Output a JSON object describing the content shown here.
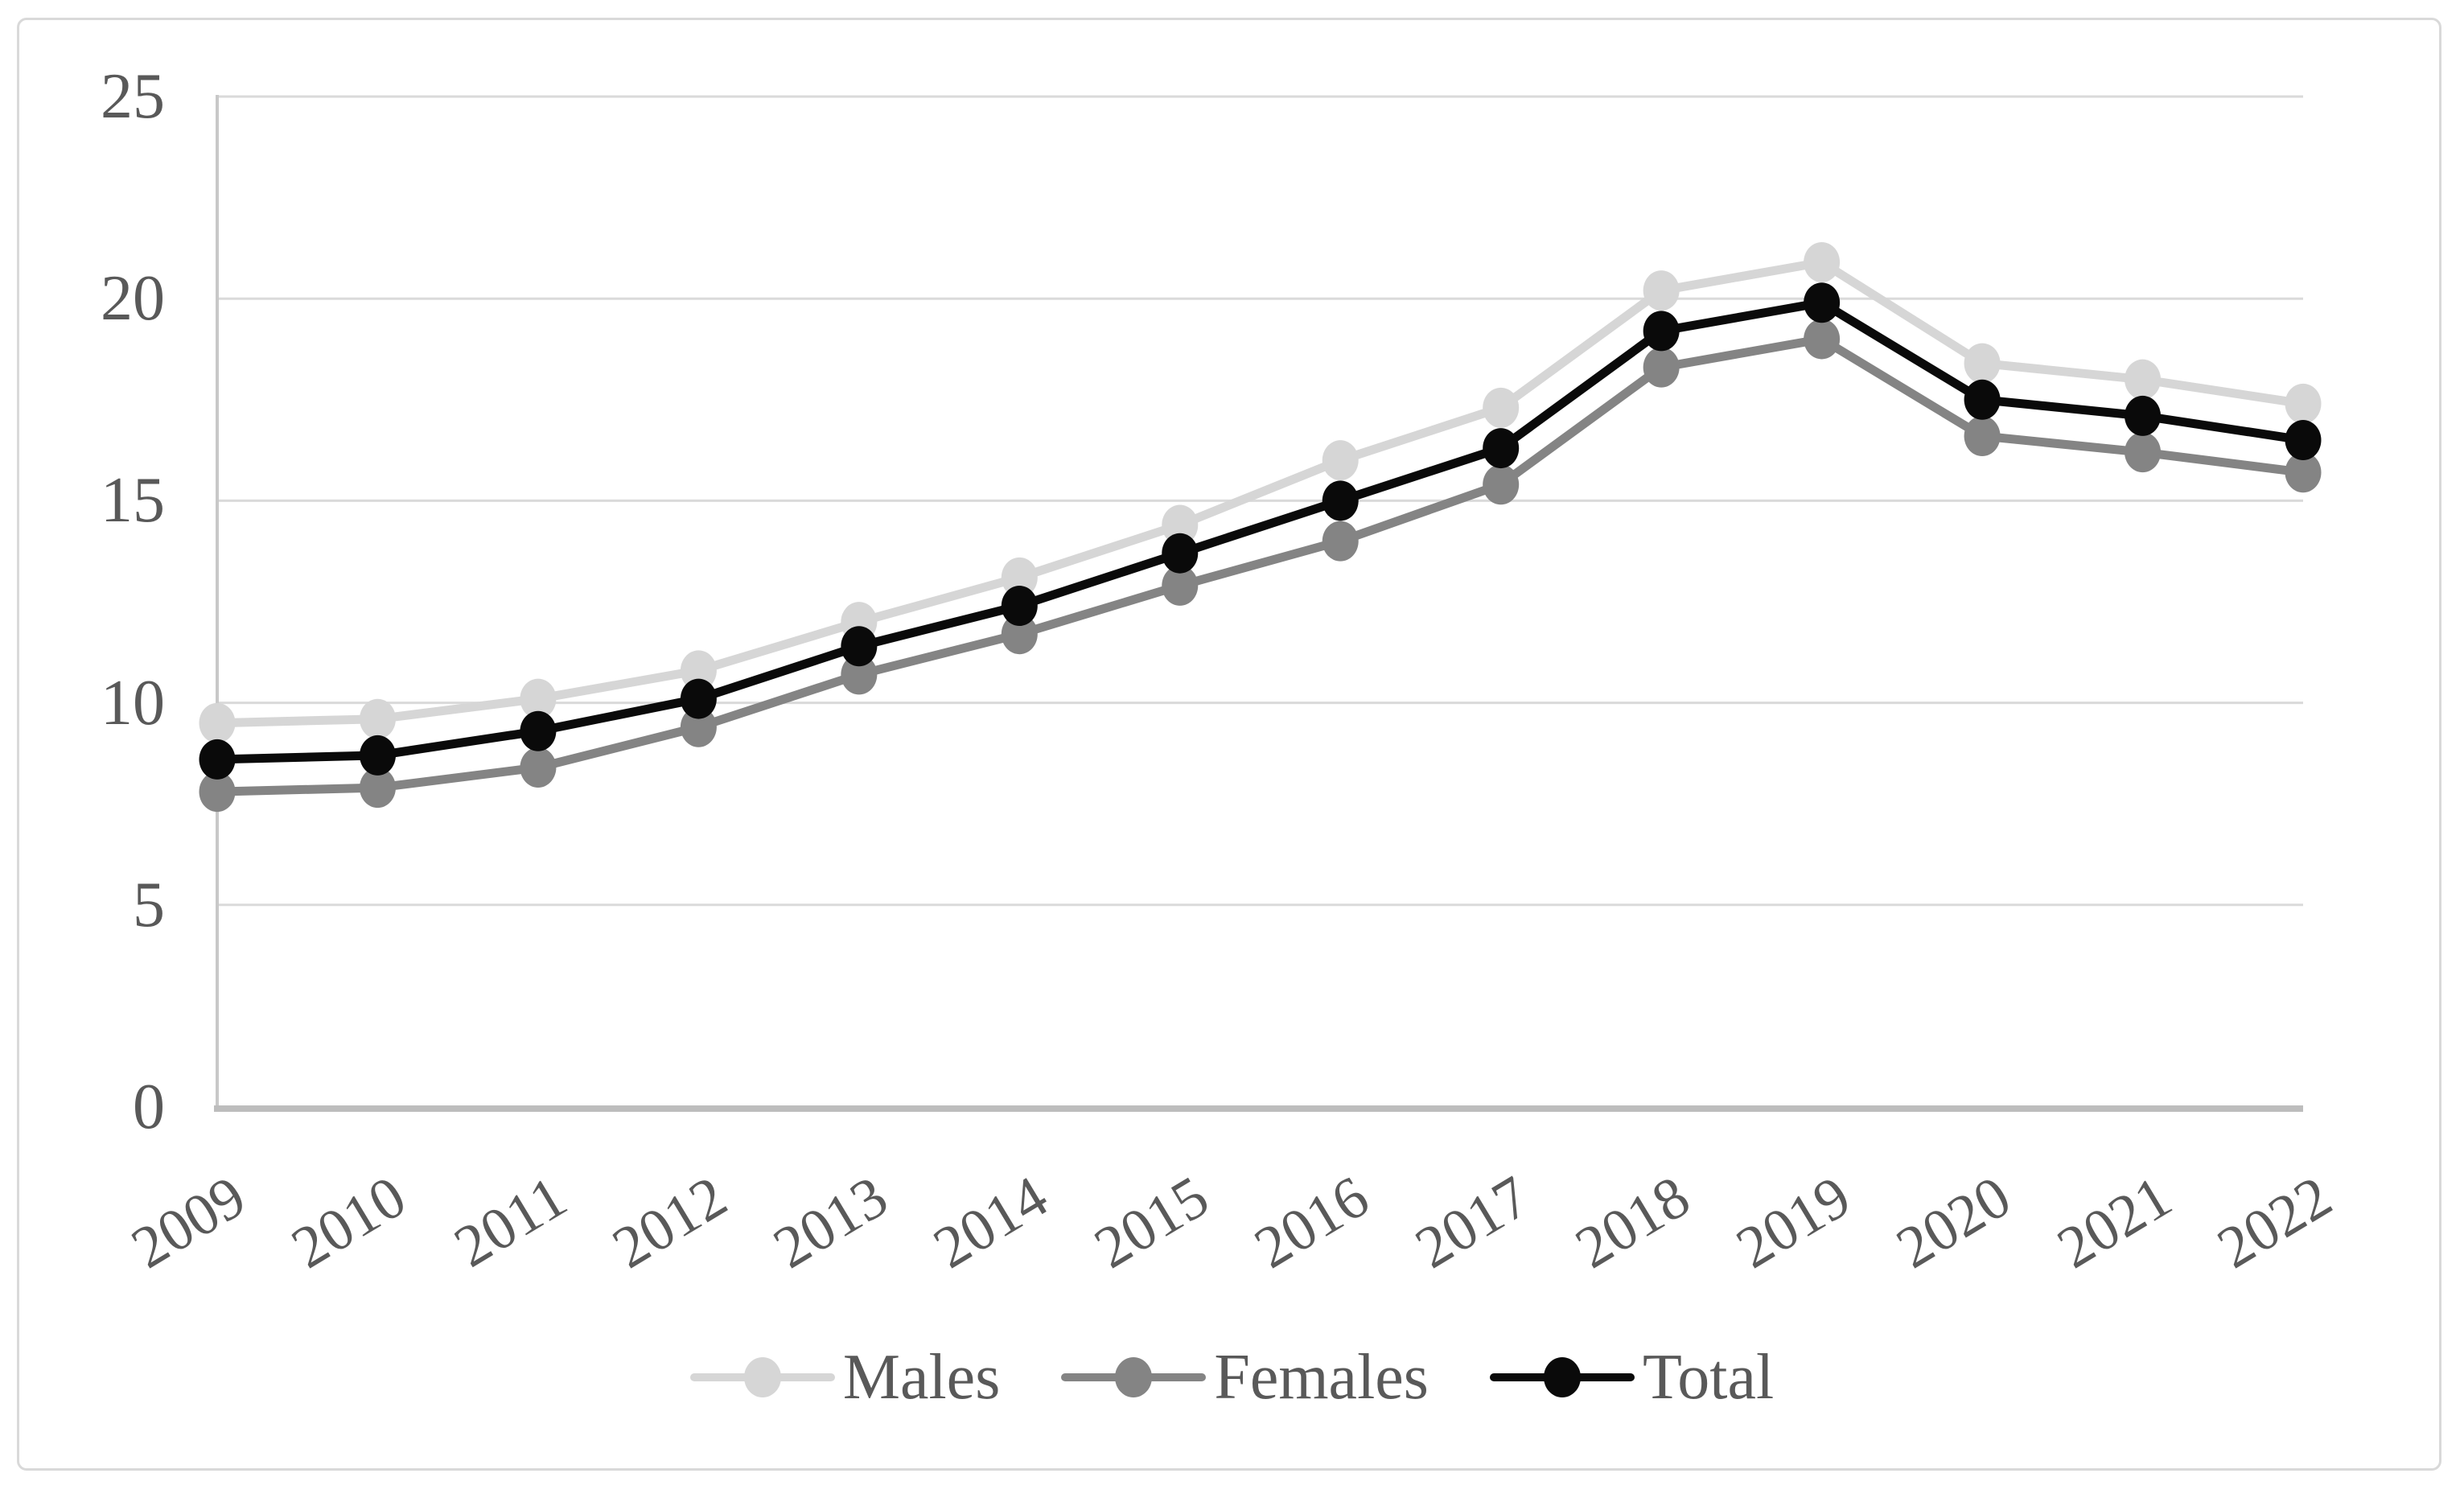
{
  "chart_data": {
    "type": "line",
    "title": "",
    "xlabel": "",
    "ylabel": "",
    "categories": [
      "2009",
      "2010",
      "2011",
      "2012",
      "2013",
      "2014",
      "2015",
      "2016",
      "2017",
      "2018",
      "2019",
      "2020",
      "2021",
      "2022"
    ],
    "series": [
      {
        "name": "Males",
        "color": "#d6d6d6",
        "values": [
          9.5,
          9.6,
          10.1,
          10.8,
          12.0,
          13.1,
          14.4,
          16.0,
          17.3,
          20.2,
          20.9,
          18.4,
          18.0,
          17.4
        ]
      },
      {
        "name": "Females",
        "color": "#848484",
        "values": [
          7.8,
          7.9,
          8.4,
          9.4,
          10.7,
          11.7,
          12.9,
          14.0,
          15.4,
          18.3,
          19.0,
          16.6,
          16.2,
          15.7
        ]
      },
      {
        "name": "Total",
        "color": "#0a0a0a",
        "values": [
          8.6,
          8.7,
          9.3,
          10.1,
          11.4,
          12.4,
          13.7,
          15.0,
          16.3,
          19.2,
          19.9,
          17.5,
          17.1,
          16.5
        ]
      }
    ],
    "y_ticks": [
      0,
      5,
      10,
      15,
      20,
      25
    ],
    "ylim": [
      0,
      25
    ],
    "grid": "horizontal",
    "legend_position": "bottom-center",
    "marker": "circle",
    "axis_text_color": "#595959",
    "gridline_color": "#dadada",
    "x_axis_line_color": "#bdbdbd",
    "y_axis_line_color": "#c8c8c8",
    "frame_border_color": "#d9d9d9",
    "background": "#ffffff"
  }
}
